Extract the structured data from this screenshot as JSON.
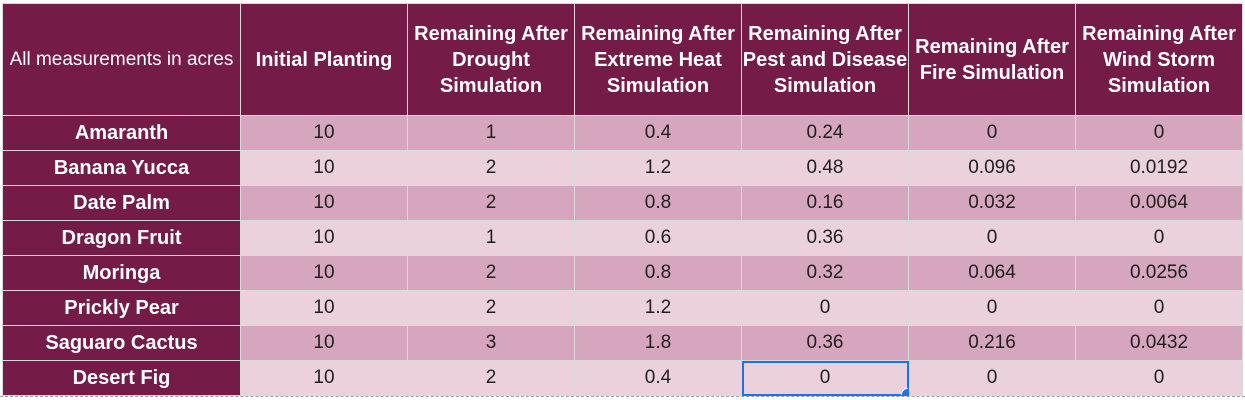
{
  "corner_label": "All measurements in acres",
  "columns": [
    "Initial Planting",
    "Remaining After Drought Simulation",
    "Remaining After Extreme Heat Simulation",
    "Remaining After Pest and Disease Simulation",
    "Remaining After Fire Simulation",
    "Remaining After Wind Storm Simulation"
  ],
  "rows": [
    {
      "name": "Amaranth",
      "values": [
        "10",
        "1",
        "0.4",
        "0.24",
        "0",
        "0"
      ]
    },
    {
      "name": "Banana Yucca",
      "values": [
        "10",
        "2",
        "1.2",
        "0.48",
        "0.096",
        "0.0192"
      ]
    },
    {
      "name": "Date Palm",
      "values": [
        "10",
        "2",
        "0.8",
        "0.16",
        "0.032",
        "0.0064"
      ]
    },
    {
      "name": "Dragon Fruit",
      "values": [
        "10",
        "1",
        "0.6",
        "0.36",
        "0",
        "0"
      ]
    },
    {
      "name": "Moringa",
      "values": [
        "10",
        "2",
        "0.8",
        "0.32",
        "0.064",
        "0.0256"
      ]
    },
    {
      "name": "Prickly Pear",
      "values": [
        "10",
        "2",
        "1.2",
        "0",
        "0",
        "0"
      ]
    },
    {
      "name": "Saguaro Cactus",
      "values": [
        "10",
        "3",
        "1.8",
        "0.36",
        "0.216",
        "0.0432"
      ]
    },
    {
      "name": "Desert Fig",
      "values": [
        "10",
        "2",
        "0.4",
        "0",
        "0",
        "0"
      ]
    }
  ],
  "colors": {
    "header_bg": "#741b47",
    "band_dark": "#d5a6bd",
    "band_light": "#ead1dc",
    "selection": "#1a73e8"
  }
}
